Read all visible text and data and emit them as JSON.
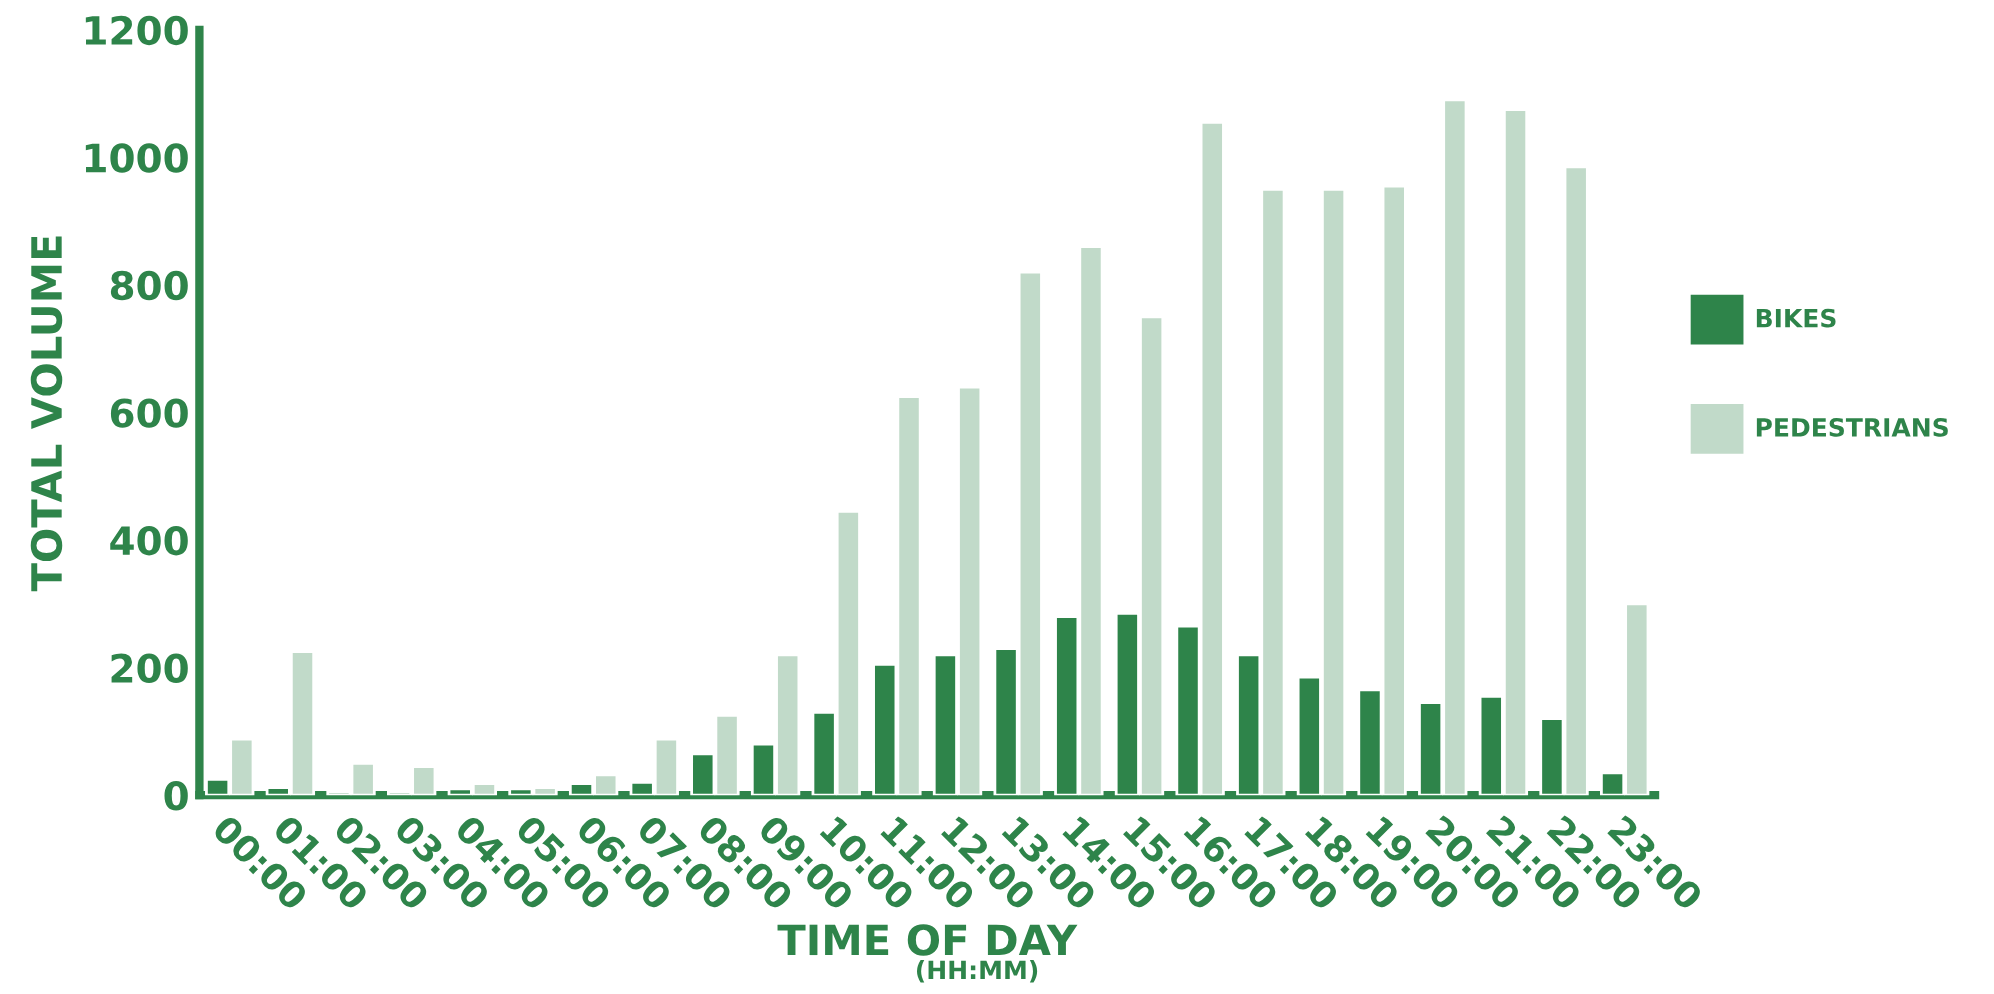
{
  "chart_data": {
    "type": "bar",
    "xlabel": "TIME OF DAY",
    "ylabel": "TOTAL VOLUME",
    "annotations": [
      "(HH:MM)"
    ],
    "categories": [
      "00:00",
      "01:00",
      "02:00",
      "03:00",
      "04:00",
      "05:00",
      "06:00",
      "07:00",
      "08:00",
      "09:00",
      "10:00",
      "11:00",
      "12:00",
      "13:00",
      "14:00",
      "15:00",
      "16:00",
      "17:00",
      "18:00",
      "19:00",
      "20:00",
      "21:00",
      "22:00",
      "23:00"
    ],
    "series": [
      {
        "name": "BIKES",
        "color": "#2e844a",
        "values": [
          25,
          12,
          5,
          5,
          10,
          10,
          18,
          20,
          65,
          80,
          130,
          205,
          220,
          230,
          280,
          285,
          265,
          220,
          185,
          165,
          145,
          155,
          120,
          35
        ]
      },
      {
        "name": "PEDESTRIANS",
        "color": "#c1dac9",
        "values": [
          88,
          225,
          50,
          45,
          18,
          12,
          32,
          88,
          125,
          220,
          445,
          625,
          640,
          820,
          860,
          750,
          1055,
          950,
          950,
          955,
          1090,
          1075,
          985,
          300
        ]
      }
    ],
    "ylim": [
      0,
      1200
    ],
    "yticks": [
      0,
      200,
      400,
      600,
      800,
      1000,
      1200
    ],
    "grid": false,
    "legend": "right"
  }
}
